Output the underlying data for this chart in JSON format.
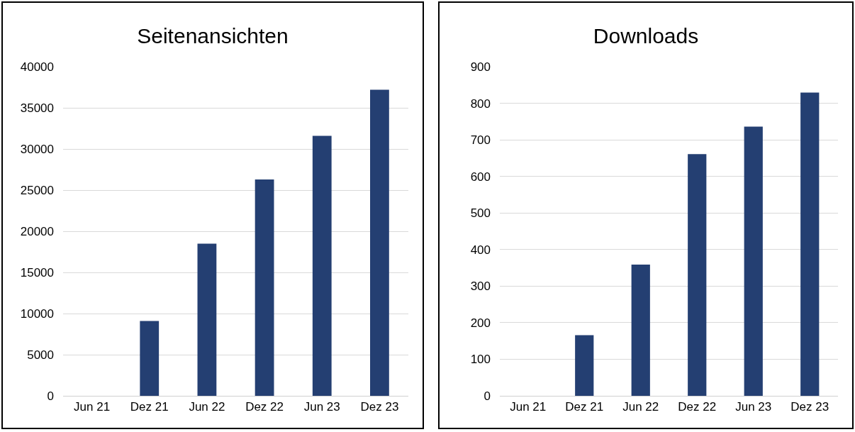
{
  "chart_data": [
    {
      "type": "bar",
      "title": "Seitenansichten",
      "categories": [
        "Jun 21",
        "Dez 21",
        "Jun 22",
        "Dez 22",
        "Jun 23",
        "Dez 23"
      ],
      "values": [
        0,
        9100,
        18500,
        26300,
        31600,
        37200
      ],
      "color": "#243f72",
      "ylim": [
        0,
        40000
      ],
      "yticks": [
        0,
        5000,
        10000,
        15000,
        20000,
        25000,
        30000,
        35000,
        40000
      ],
      "grid": "y"
    },
    {
      "type": "bar",
      "title": "Downloads",
      "categories": [
        "Jun 21",
        "Dez 21",
        "Jun 22",
        "Dez 22",
        "Jun 23",
        "Dez 23"
      ],
      "values": [
        0,
        166,
        359,
        661,
        736,
        829
      ],
      "color": "#243f72",
      "ylim": [
        0,
        900
      ],
      "yticks": [
        0,
        100,
        200,
        300,
        400,
        500,
        600,
        700,
        800,
        900
      ],
      "grid": "y"
    }
  ]
}
